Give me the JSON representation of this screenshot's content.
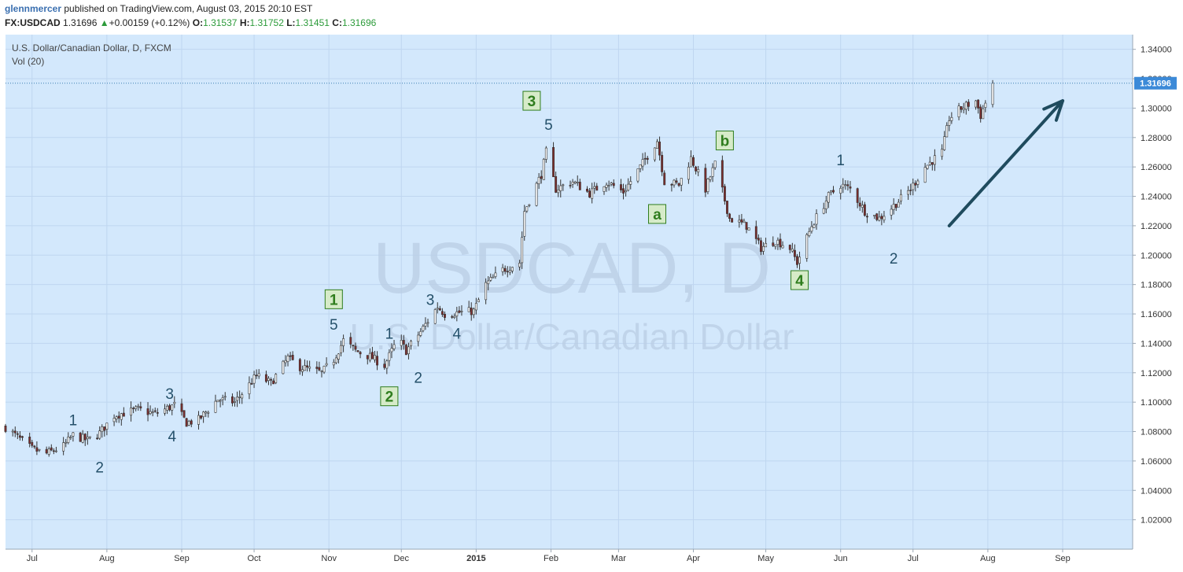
{
  "header": {
    "author": "glennmercer",
    "published_text": "published on TradingView.com, August 03, 2015 20:10 EST",
    "symbol": "FX:USDCAD",
    "last": "1.31696",
    "change_arrow": "▲",
    "change": "+0.00159 (+0.12%)",
    "o_label": "O:",
    "o_value": "1.31537",
    "h_label": "H:",
    "h_value": "1.31752",
    "l_label": "L:",
    "l_value": "1.31451",
    "c_label": "C:",
    "c_value": "1.31696"
  },
  "legend": {
    "title": "U.S. Dollar/Canadian Dollar, D, FXCM",
    "volume": "Vol (20)"
  },
  "watermark": {
    "symbol": "USDCAD, D",
    "name": "U.S. Dollar/Canadian Dollar"
  },
  "colors": {
    "background": "#d3e8fc",
    "grid": "#bfd6f0",
    "up_candle": "#ffffff",
    "down_candle": "#7c2d2d",
    "wick": "#333333",
    "wave_minor": "#24506a",
    "wave_major": "#2f7d1e",
    "price_line": "#3c7fb1",
    "price_tag": "#3c8ad8",
    "arrow": "#1f4b5e"
  },
  "chart_data": {
    "type": "candlestick",
    "y_axis": {
      "min": 1.0,
      "max": 1.35,
      "ticks": [
        "1.02000",
        "1.04000",
        "1.06000",
        "1.08000",
        "1.10000",
        "1.12000",
        "1.14000",
        "1.16000",
        "1.18000",
        "1.20000",
        "1.22000",
        "1.24000",
        "1.26000",
        "1.28000",
        "1.30000",
        "1.32000",
        "1.34000"
      ]
    },
    "x_axis": {
      "start_date": "2015-06-20",
      "end_date": "2015-09-30",
      "labels": [
        {
          "label": "Jul",
          "date": "2014-07-01",
          "bold": false
        },
        {
          "label": "Aug",
          "date": "2014-08-01",
          "bold": false
        },
        {
          "label": "Sep",
          "date": "2014-09-01",
          "bold": false
        },
        {
          "label": "Oct",
          "date": "2014-10-01",
          "bold": false
        },
        {
          "label": "Nov",
          "date": "2014-11-01",
          "bold": false
        },
        {
          "label": "Dec",
          "date": "2014-12-01",
          "bold": false
        },
        {
          "label": "2015",
          "date": "2015-01-01",
          "bold": true
        },
        {
          "label": "Feb",
          "date": "2015-02-01",
          "bold": false
        },
        {
          "label": "Mar",
          "date": "2015-03-01",
          "bold": false
        },
        {
          "label": "Apr",
          "date": "2015-04-01",
          "bold": false
        },
        {
          "label": "May",
          "date": "2015-05-01",
          "bold": false
        },
        {
          "label": "Jun",
          "date": "2015-06-01",
          "bold": false
        },
        {
          "label": "Jul",
          "date": "2015-07-01",
          "bold": false
        },
        {
          "label": "Aug",
          "date": "2015-08-01",
          "bold": false
        },
        {
          "label": "Sep",
          "date": "2015-09-01",
          "bold": false
        }
      ]
    },
    "last_price": 1.31696,
    "last_price_label": "1.31696",
    "closes": [
      {
        "date": "2014-06-20",
        "close": 1.083
      },
      {
        "date": "2014-07-01",
        "close": 1.068
      },
      {
        "date": "2014-07-07",
        "close": 1.065
      },
      {
        "date": "2014-07-14",
        "close": 1.07
      },
      {
        "date": "2014-07-18",
        "close": 1.0775
      },
      {
        "date": "2014-07-24",
        "close": 1.074
      },
      {
        "date": "2014-07-29",
        "close": 1.079
      },
      {
        "date": "2014-08-04",
        "close": 1.091
      },
      {
        "date": "2014-08-14",
        "close": 1.095
      },
      {
        "date": "2014-08-21",
        "close": 1.092
      },
      {
        "date": "2014-08-29",
        "close": 1.098
      },
      {
        "date": "2014-09-03",
        "close": 1.086
      },
      {
        "date": "2014-09-08",
        "close": 1.088
      },
      {
        "date": "2014-09-16",
        "close": 1.102
      },
      {
        "date": "2014-09-23",
        "close": 1.1
      },
      {
        "date": "2014-10-02",
        "close": 1.118
      },
      {
        "date": "2014-10-08",
        "close": 1.113
      },
      {
        "date": "2014-10-15",
        "close": 1.13
      },
      {
        "date": "2014-10-20",
        "close": 1.124
      },
      {
        "date": "2014-10-29",
        "close": 1.12
      },
      {
        "date": "2014-11-03",
        "close": 1.129
      },
      {
        "date": "2014-11-07",
        "close": 1.142
      },
      {
        "date": "2014-11-12",
        "close": 1.135
      },
      {
        "date": "2014-11-18",
        "close": 1.131
      },
      {
        "date": "2014-11-24",
        "close": 1.125
      },
      {
        "date": "2014-11-28",
        "close": 1.138
      },
      {
        "date": "2014-12-01",
        "close": 1.14
      },
      {
        "date": "2014-12-03",
        "close": 1.135
      },
      {
        "date": "2014-12-09",
        "close": 1.148
      },
      {
        "date": "2014-12-16",
        "close": 1.165
      },
      {
        "date": "2014-12-19",
        "close": 1.16
      },
      {
        "date": "2014-12-31",
        "close": 1.162
      },
      {
        "date": "2015-01-05",
        "close": 1.18
      },
      {
        "date": "2015-01-12",
        "close": 1.19
      },
      {
        "date": "2015-01-19",
        "close": 1.195
      },
      {
        "date": "2015-01-21",
        "close": 1.23
      },
      {
        "date": "2015-01-28",
        "close": 1.255
      },
      {
        "date": "2015-01-30",
        "close": 1.27
      },
      {
        "date": "2015-02-03",
        "close": 1.245
      },
      {
        "date": "2015-02-10",
        "close": 1.25
      },
      {
        "date": "2015-02-17",
        "close": 1.242
      },
      {
        "date": "2015-02-24",
        "close": 1.25
      },
      {
        "date": "2015-03-03",
        "close": 1.243
      },
      {
        "date": "2015-03-10",
        "close": 1.26
      },
      {
        "date": "2015-03-17",
        "close": 1.278
      },
      {
        "date": "2015-03-20",
        "close": 1.25
      },
      {
        "date": "2015-03-26",
        "close": 1.248
      },
      {
        "date": "2015-03-31",
        "close": 1.266
      },
      {
        "date": "2015-04-06",
        "close": 1.245
      },
      {
        "date": "2015-04-10",
        "close": 1.262
      },
      {
        "date": "2015-04-16",
        "close": 1.225
      },
      {
        "date": "2015-04-23",
        "close": 1.22
      },
      {
        "date": "2015-04-29",
        "close": 1.205
      },
      {
        "date": "2015-05-05",
        "close": 1.21
      },
      {
        "date": "2015-05-11",
        "close": 1.205
      },
      {
        "date": "2015-05-14",
        "close": 1.195
      },
      {
        "date": "2015-05-20",
        "close": 1.22
      },
      {
        "date": "2015-05-27",
        "close": 1.24
      },
      {
        "date": "2015-06-01",
        "close": 1.248
      },
      {
        "date": "2015-06-05",
        "close": 1.245
      },
      {
        "date": "2015-06-11",
        "close": 1.23
      },
      {
        "date": "2015-06-17",
        "close": 1.225
      },
      {
        "date": "2015-06-22",
        "close": 1.232
      },
      {
        "date": "2015-06-30",
        "close": 1.245
      },
      {
        "date": "2015-07-06",
        "close": 1.26
      },
      {
        "date": "2015-07-13",
        "close": 1.27
      },
      {
        "date": "2015-07-16",
        "close": 1.293
      },
      {
        "date": "2015-07-21",
        "close": 1.3
      },
      {
        "date": "2015-07-27",
        "close": 1.305
      },
      {
        "date": "2015-07-29",
        "close": 1.295
      },
      {
        "date": "2015-08-03",
        "close": 1.31696
      }
    ],
    "wave_labels": [
      {
        "text": "1",
        "date": "2014-07-18",
        "price": 1.088,
        "style": "minor"
      },
      {
        "text": "2",
        "date": "2014-07-29",
        "price": 1.056,
        "style": "minor"
      },
      {
        "text": "3",
        "date": "2014-08-27",
        "price": 1.106,
        "style": "minor"
      },
      {
        "text": "4",
        "date": "2014-08-28",
        "price": 1.077,
        "style": "minor"
      },
      {
        "text": "5",
        "date": "2014-11-03",
        "price": 1.153,
        "style": "minor"
      },
      {
        "text": "1",
        "date": "2014-11-26",
        "price": 1.147,
        "style": "minor"
      },
      {
        "text": "2",
        "date": "2014-12-08",
        "price": 1.117,
        "style": "minor"
      },
      {
        "text": "3",
        "date": "2014-12-13",
        "price": 1.17,
        "style": "minor"
      },
      {
        "text": "4",
        "date": "2014-12-24",
        "price": 1.147,
        "style": "minor"
      },
      {
        "text": "5",
        "date": "2015-01-31",
        "price": 1.289,
        "style": "minor"
      },
      {
        "text": "1",
        "date": "2015-06-01",
        "price": 1.265,
        "style": "minor"
      },
      {
        "text": "2",
        "date": "2015-06-23",
        "price": 1.198,
        "style": "minor"
      },
      {
        "text": "1",
        "date": "2014-11-03",
        "price": 1.17,
        "style": "major"
      },
      {
        "text": "2",
        "date": "2014-11-26",
        "price": 1.104,
        "style": "major"
      },
      {
        "text": "3",
        "date": "2015-01-24",
        "price": 1.305,
        "style": "major"
      },
      {
        "text": "4",
        "date": "2015-05-15",
        "price": 1.183,
        "style": "major"
      },
      {
        "text": "a",
        "date": "2015-03-17",
        "price": 1.228,
        "style": "major"
      },
      {
        "text": "b",
        "date": "2015-04-14",
        "price": 1.278,
        "style": "major"
      }
    ],
    "arrow": {
      "from": {
        "date": "2015-07-16",
        "price": 1.22
      },
      "to": {
        "date": "2015-09-01",
        "price": 1.305
      }
    }
  }
}
